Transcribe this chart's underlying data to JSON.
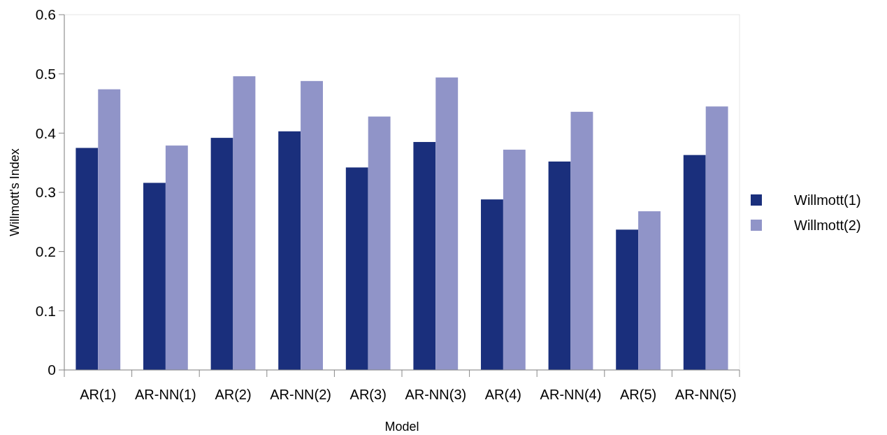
{
  "chart_data": {
    "type": "bar",
    "xlabel": "Model",
    "ylabel": "Willmott's Index",
    "categories": [
      "AR(1)",
      "AR-NN(1)",
      "AR(2)",
      "AR-NN(2)",
      "AR(3)",
      "AR-NN(3)",
      "AR(4)",
      "AR-NN(4)",
      "AR(5)",
      "AR-NN(5)"
    ],
    "series": [
      {
        "name": "Willmott(1)",
        "color": "#1a2f7c",
        "values": [
          0.375,
          0.316,
          0.392,
          0.403,
          0.342,
          0.385,
          0.288,
          0.352,
          0.237,
          0.363
        ]
      },
      {
        "name": "Willmott(2)",
        "color": "#9094c8",
        "values": [
          0.474,
          0.379,
          0.496,
          0.488,
          0.428,
          0.494,
          0.372,
          0.436,
          0.268,
          0.445
        ]
      }
    ],
    "ylim": [
      0,
      0.6
    ],
    "yticks": [
      0,
      0.1,
      0.2,
      0.3,
      0.4,
      0.5,
      0.6
    ],
    "legend": "right"
  }
}
